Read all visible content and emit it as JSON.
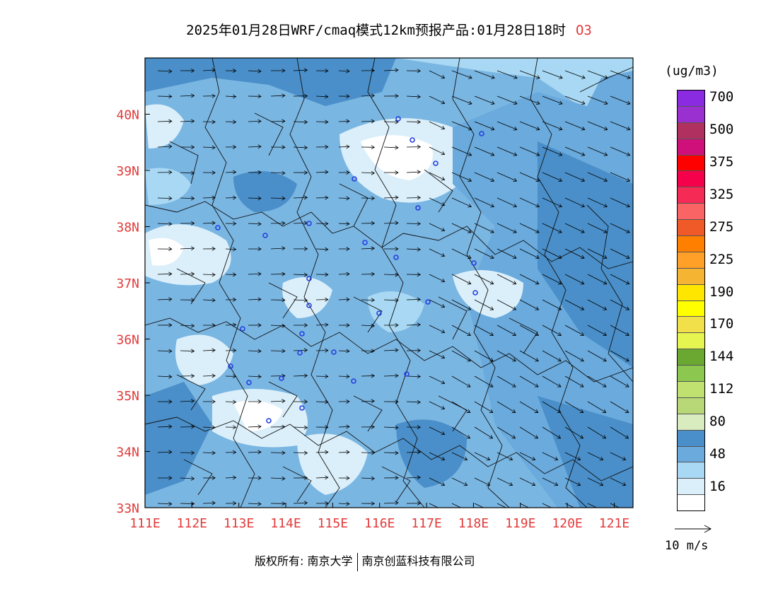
{
  "header": {
    "title": "2025年01月28日WRF/cmaq模式12km预报产品:01月28日18时",
    "species": "O3"
  },
  "map": {
    "lon_ticks": [
      "111E",
      "112E",
      "113E",
      "114E",
      "115E",
      "116E",
      "117E",
      "118E",
      "119E",
      "120E",
      "121E"
    ],
    "lat_ticks": [
      "33N",
      "34N",
      "35N",
      "36N",
      "37N",
      "38N",
      "39N",
      "40N"
    ],
    "tick_color": "#e23a3a",
    "background_colors": [
      "#ffffff",
      "#dbeffa",
      "#a8d8f3",
      "#7ab6e2",
      "#4a8fc9"
    ],
    "station_color": "#2440e0"
  },
  "colorbar": {
    "unit": "(ug/m3)",
    "segments": [
      {
        "color": "#8a2be2",
        "label": "700"
      },
      {
        "color": "#9b30d0",
        "label": ""
      },
      {
        "color": "#b03060",
        "label": "500"
      },
      {
        "color": "#d0107a",
        "label": ""
      },
      {
        "color": "#ff0000",
        "label": "375"
      },
      {
        "color": "#f5004a",
        "label": ""
      },
      {
        "color": "#f52b55",
        "label": "325"
      },
      {
        "color": "#fa6464",
        "label": ""
      },
      {
        "color": "#f05a28",
        "label": "275"
      },
      {
        "color": "#ff8000",
        "label": ""
      },
      {
        "color": "#ffa028",
        "label": "225"
      },
      {
        "color": "#f5b432",
        "label": ""
      },
      {
        "color": "#ffe600",
        "label": "190"
      },
      {
        "color": "#ffff00",
        "label": ""
      },
      {
        "color": "#f2e04a",
        "label": "170"
      },
      {
        "color": "#e6f550",
        "label": ""
      },
      {
        "color": "#6aa832",
        "label": "144"
      },
      {
        "color": "#8cc850",
        "label": ""
      },
      {
        "color": "#c0e070",
        "label": "112"
      },
      {
        "color": "#b8d878",
        "label": ""
      },
      {
        "color": "#d8ecc0",
        "label": "80"
      },
      {
        "color": "#4a8fc9",
        "label": ""
      },
      {
        "color": "#6aaadc",
        "label": "48"
      },
      {
        "color": "#a8d8f3",
        "label": ""
      },
      {
        "color": "#dbeffa",
        "label": "16"
      },
      {
        "color": "#ffffff",
        "label": ""
      }
    ]
  },
  "wind_reference": {
    "label": "10 m/s"
  },
  "footer": {
    "copyright_prefix": "版权所有:",
    "org1": "南京大学",
    "org2": "南京创蓝科技有限公司"
  }
}
